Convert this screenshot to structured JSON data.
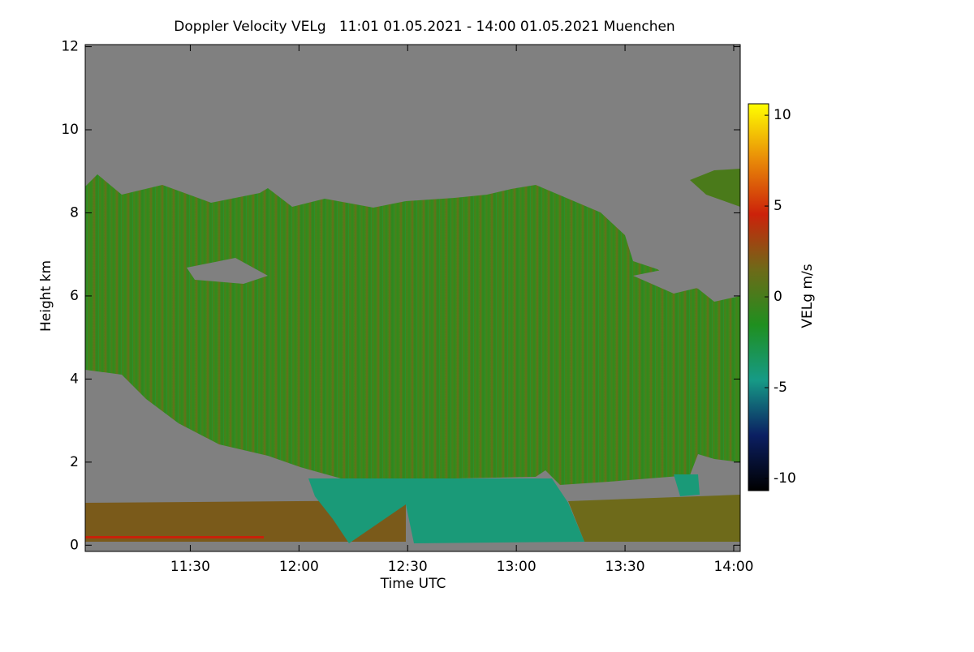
{
  "chart_data": {
    "type": "heatmap",
    "title": "Doppler Velocity VELg   11:01 01.05.2021 - 14:00 01.05.2021 Muenchen",
    "xlabel": "Time UTC",
    "ylabel": "Height km",
    "xlim": [
      11.0167,
      14.03
    ],
    "xticks": [
      {
        "value": 11.5,
        "label": "11:30"
      },
      {
        "value": 12.0,
        "label": "12:00"
      },
      {
        "value": 12.5,
        "label": "12:30"
      },
      {
        "value": 13.0,
        "label": "13:00"
      },
      {
        "value": 13.5,
        "label": "13:30"
      },
      {
        "value": 14.0,
        "label": "14:00"
      }
    ],
    "ylim": [
      -0.15,
      12.05
    ],
    "yticks": [
      0,
      2,
      4,
      6,
      8,
      10,
      12
    ],
    "background": "#808080",
    "colorbar": {
      "label": "VELg m/s",
      "lim": [
        -10.67,
        10.63
      ],
      "ticks": [
        -10,
        -5,
        0,
        5,
        10
      ],
      "colors": [
        "#000000",
        "#0b1f62",
        "#169a86",
        "#1f8f1f",
        "#6e6a18",
        "#cc220a",
        "#e98c08",
        "#ffff00"
      ]
    }
  }
}
